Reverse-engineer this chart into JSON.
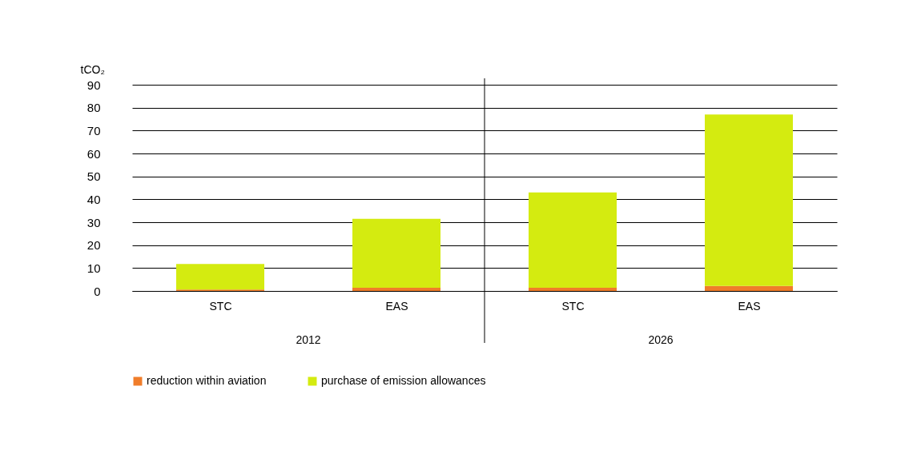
{
  "chart_data": {
    "type": "bar",
    "stacked": true,
    "ylabel": "tCO₂",
    "categories": [
      "STC",
      "EAS",
      "STC",
      "EAS"
    ],
    "annotations": [
      "2012",
      "2026"
    ],
    "series": [
      {
        "name": "reduction within aviation",
        "color": "#f07d2a",
        "values": [
          0.6,
          1.4,
          1.4,
          2.2
        ]
      },
      {
        "name": "purchase of emission allowances",
        "color": "#d4eb10",
        "values": [
          11.2,
          30.1,
          41.6,
          74.8
        ]
      }
    ],
    "ylim": [
      0,
      90
    ],
    "yticks": [
      0,
      10,
      20,
      30,
      40,
      50,
      60,
      70,
      80,
      90
    ],
    "grid": "y",
    "legend": "bottom"
  }
}
